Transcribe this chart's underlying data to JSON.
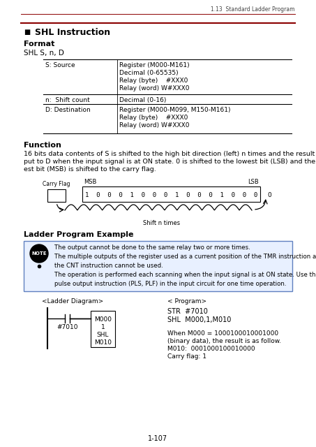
{
  "page_header": "1.13  Standard Ladder Program",
  "section_title": "SHL Instruction",
  "format_label": "Format",
  "format_syntax": "SHL S, n, D",
  "table_rows": [
    [
      "S: Source",
      "Register (M000-M161)\nDecimal (0-65535)\nRelay (byte)    #XXX0\nRelay (word) W#XXX0"
    ],
    [
      "n:  Shift count",
      "Decimal (0-16)"
    ],
    [
      "D: Destination",
      "Register (M000-M099, M150-M161)\nRelay (byte)    #XXX0\nRelay (word) W#XXX0"
    ]
  ],
  "function_label": "Function",
  "function_text": "16 bits data contents of S is shifted to the high bit direction (left) n times and the result is out-\nput to D when the input signal is at ON state. 0 is shifted to the lowest bit (LSB) and the high-\nest bit (MSB) is shifted to the carry flag.",
  "carry_flag_label": "Carry Flag",
  "msb_label": "MSB",
  "lsb_label": "LSB",
  "bit_values": "1  0  0  0  1  0  0  0  1  0  0  0  1  0  0  0",
  "shift_label": "Shift n times",
  "ladder_label": "Ladder Program Example",
  "note_text_lines": [
    "The output cannot be done to the same relay two or more times.",
    "The multiple outputs of the register used as a current position of the TMR instruction and",
    "the CNT instruction cannot be used.",
    "The operation is performed each scanning when the input signal is at ON state. Use the",
    "pulse output instruction (PLS, PLF) in the input circuit for one time operation."
  ],
  "ladder_diagram_label": "<Ladder Diagram>",
  "program_label": "< Program>",
  "ladder_contact": "#7010",
  "ladder_coil_lines": [
    "M000",
    "1",
    "SHL",
    "M010"
  ],
  "program_code_lines": [
    "STR  #7010",
    "SHL  M000,1,M010"
  ],
  "program_note_lines": [
    "When M000 = 1000100010001000",
    "(binary data), the result is as follow.",
    "M010:  0001000100010000",
    "Carry flag: 1"
  ],
  "border_color": "#8B0000",
  "note_bg_color": "#E8F0FF",
  "note_border_color": "#6080C0",
  "page_number": "1-107"
}
